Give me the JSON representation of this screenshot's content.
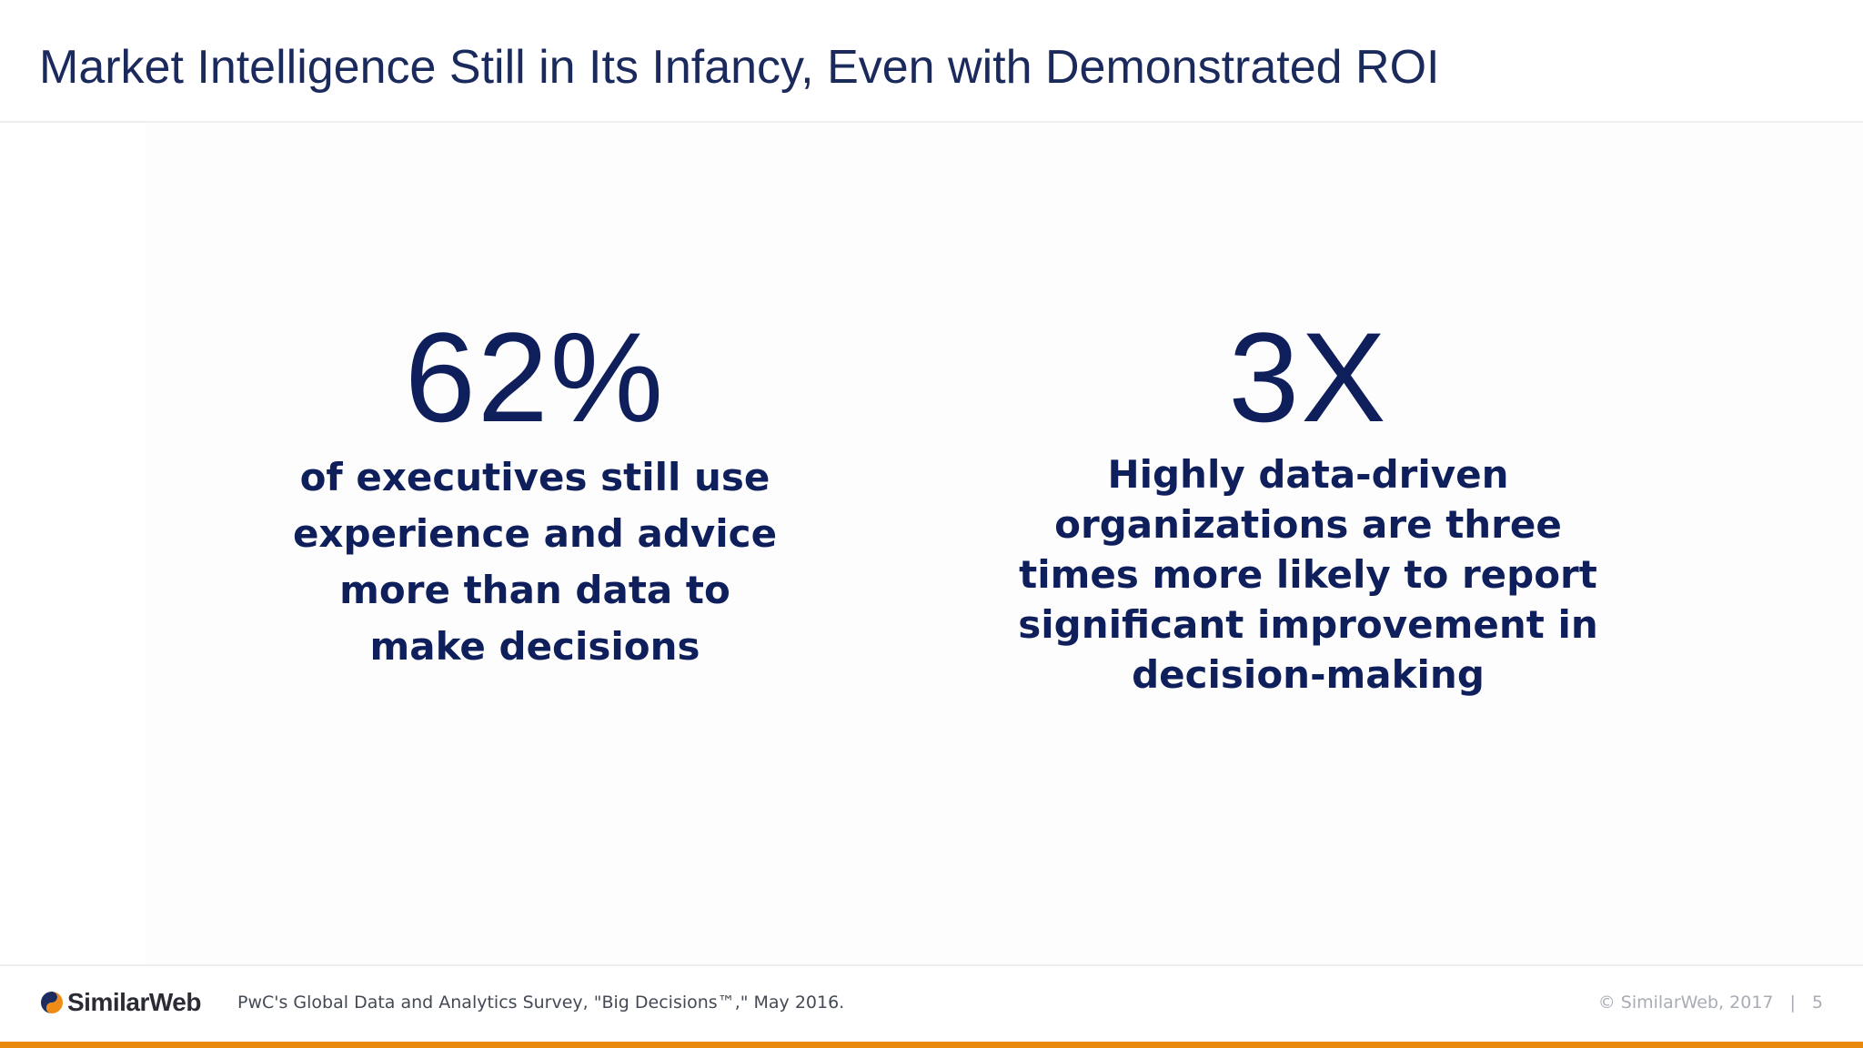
{
  "slide": {
    "title": "Market Intelligence Still in Its Infancy, Even with Demonstrated ROI"
  },
  "stats": [
    {
      "value": "62%",
      "description": "of executives still use experience and advice more than data to make decisions"
    },
    {
      "value": "3X",
      "description": "Highly data-driven organizations are three times more likely to report significant improvement in decision-making"
    }
  ],
  "footer": {
    "logo_text": "SimilarWeb",
    "source": "PwC's Global Data and Analytics Survey, \"Big Decisions™,\" May 2016.",
    "copyright": "© SimilarWeb, 2017",
    "separator": "|",
    "page_number": "5"
  },
  "colors": {
    "text_primary": "#0f1f5c",
    "title": "#1b2a5c",
    "accent": "#e8890c",
    "logo_orange": "#f08c16",
    "logo_navy": "#1d2c5e"
  },
  "icons": {
    "logo_mark": "similarweb-logo-icon"
  }
}
